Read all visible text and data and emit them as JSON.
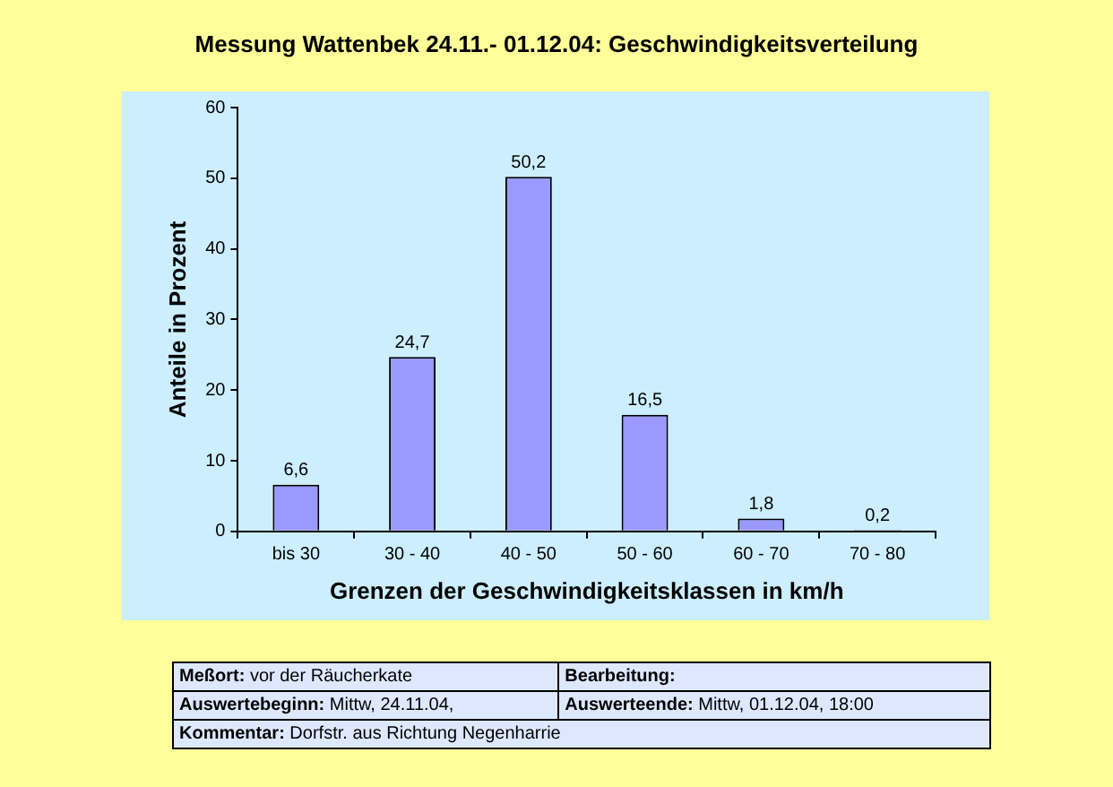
{
  "chart_data": {
    "type": "bar",
    "title": "Messung Wattenbek 24.11.- 01.12.04: Geschwindigkeitsverteilung",
    "xlabel": "Grenzen der Geschwindigkeitsklassen in km/h",
    "ylabel": "Anteile in Prozent",
    "categories": [
      "bis 30",
      "30 - 40",
      "40 - 50",
      "50 - 60",
      "60 - 70",
      "70 - 80"
    ],
    "values": [
      6.6,
      24.7,
      50.2,
      16.5,
      1.8,
      0.2
    ],
    "value_labels": [
      "6,6",
      "24,7",
      "50,2",
      "16,5",
      "1,8",
      "0,2"
    ],
    "color": "#9999ff",
    "ylim": [
      0,
      60
    ],
    "yticks": [
      0,
      10,
      20,
      30,
      40,
      50,
      60
    ],
    "grid": false,
    "annotations": [
      "Meßort: vor der Räucherkate",
      "Bearbeitung:",
      "Auswertebeginn: Mittw, 24.11.04,",
      "Auswerteende: Mittw, 01.12.04, 18:00",
      "Kommentar: Dorfstr. aus Richtung Negenharrie"
    ]
  }
}
